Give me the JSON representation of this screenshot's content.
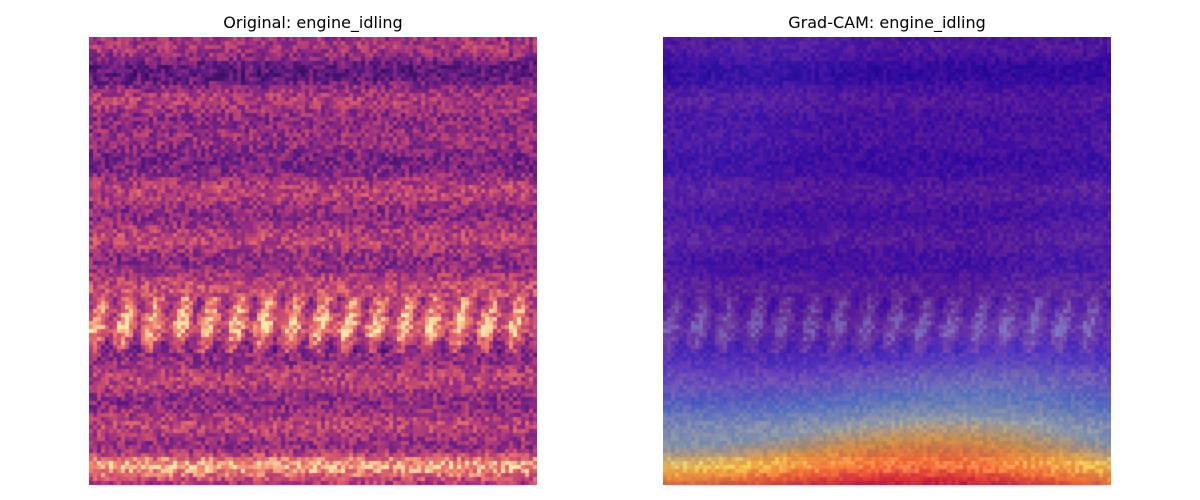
{
  "panels": [
    {
      "title": "Original: engine_idling",
      "kind": "mel-spectrogram",
      "colormap": "magma"
    },
    {
      "title": "Grad-CAM: engine_idling",
      "kind": "grad-cam-overlay",
      "colormap": "jet"
    }
  ]
}
